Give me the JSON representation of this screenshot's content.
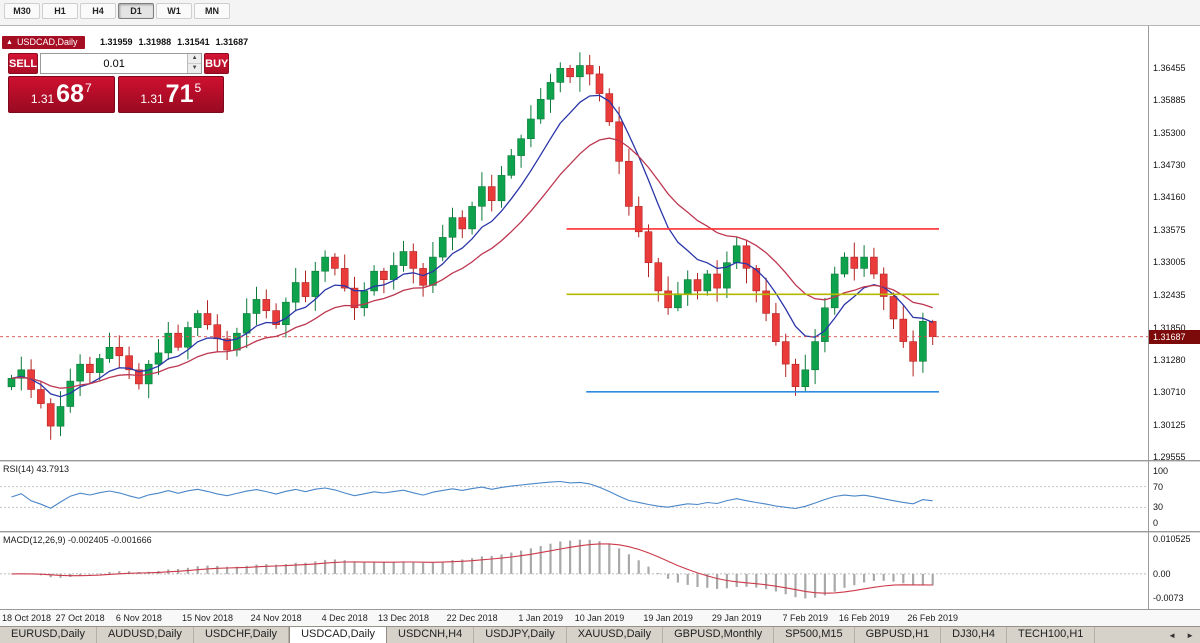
{
  "toolbar": {
    "timeframes": [
      {
        "label": "M30",
        "active": false
      },
      {
        "label": "H1",
        "active": false
      },
      {
        "label": "H4",
        "active": false
      },
      {
        "label": "D1",
        "active": true
      },
      {
        "label": "W1",
        "active": false
      },
      {
        "label": "MN",
        "active": false
      }
    ]
  },
  "window": {
    "symbol_title": "USDCAD,Daily",
    "collapse_icon": "▲",
    "ohlc_text": {
      "open": "1.31959",
      "high": "1.31988",
      "low": "1.31541",
      "close": "1.31687"
    }
  },
  "trade_panel": {
    "sell_label": "SELL",
    "buy_label": "BUY",
    "volume": "0.01",
    "spin_up": "▲",
    "spin_down": "▼",
    "sell_price": {
      "prefix": "1.31",
      "big": "68",
      "sup": "7"
    },
    "buy_price": {
      "prefix": "1.31",
      "big": "71",
      "sup": "5"
    }
  },
  "price_axis": {
    "labels": [
      "1.36455",
      "1.35885",
      "1.35300",
      "1.34730",
      "1.34160",
      "1.33575",
      "1.33005",
      "1.32435",
      "1.31850",
      "1.31280",
      "1.30710",
      "1.30125",
      "1.29555"
    ],
    "badge": "1.31687"
  },
  "rsi": {
    "label": "RSI(14) 43.7913",
    "axis_labels": [
      "100",
      "70",
      "30",
      "0"
    ],
    "levels": [
      70,
      30
    ]
  },
  "macd": {
    "label": "MACD(12,26,9) -0.002405 -0.001666",
    "axis_labels": [
      "0.010525",
      "0.00",
      "-0.0073"
    ]
  },
  "dates": [
    "18 Oct 2018",
    "27 Oct 2018",
    "6 Nov 2018",
    "15 Nov 2018",
    "24 Nov 2018",
    "4 Dec 2018",
    "13 Dec 2018",
    "22 Dec 2018",
    "1 Jan 2019",
    "10 Jan 2019",
    "19 Jan 2019",
    "29 Jan 2019",
    "7 Feb 2019",
    "16 Feb 2019",
    "26 Feb 2019"
  ],
  "tabs": {
    "items": [
      {
        "label": "EURUSD,Daily",
        "active": false
      },
      {
        "label": "AUDUSD,Daily",
        "active": false
      },
      {
        "label": "USDCHF,Daily",
        "active": false
      },
      {
        "label": "USDCAD,Daily",
        "active": true
      },
      {
        "label": "USDCNH,H4",
        "active": false
      },
      {
        "label": "USDJPY,Daily",
        "active": false
      },
      {
        "label": "XAUUSD,Daily",
        "active": false
      },
      {
        "label": "GBPUSD,Monthly",
        "active": false
      },
      {
        "label": "SP500,M15",
        "active": false
      },
      {
        "label": "GBPUSD,H1",
        "active": false
      },
      {
        "label": "DJ30,H4",
        "active": false
      },
      {
        "label": "TECH100,H1",
        "active": false
      }
    ],
    "scroll_left": "◄",
    "scroll_right": "►"
  },
  "chart_data": {
    "type": "candlestick",
    "symbol": "USDCAD",
    "timeframe": "Daily",
    "title": "USDCAD,Daily",
    "price_min": 1.295,
    "price_max": 1.372,
    "first_open": 1.308,
    "closes": [
      1.3095,
      1.311,
      1.3075,
      1.305,
      1.301,
      1.3045,
      1.309,
      1.312,
      1.3105,
      1.313,
      1.315,
      1.3135,
      1.311,
      1.3085,
      1.312,
      1.314,
      1.3175,
      1.315,
      1.3185,
      1.321,
      1.319,
      1.3165,
      1.3145,
      1.3175,
      1.321,
      1.3235,
      1.3215,
      1.319,
      1.323,
      1.3265,
      1.324,
      1.3285,
      1.331,
      1.329,
      1.3255,
      1.322,
      1.325,
      1.3285,
      1.327,
      1.3295,
      1.332,
      1.329,
      1.326,
      1.331,
      1.3345,
      1.338,
      1.336,
      1.34,
      1.3435,
      1.341,
      1.3455,
      1.349,
      1.352,
      1.3555,
      1.359,
      1.362,
      1.3645,
      1.363,
      1.365,
      1.3635,
      1.36,
      1.355,
      1.348,
      1.34,
      1.3355,
      1.33,
      1.325,
      1.322,
      1.3245,
      1.327,
      1.325,
      1.328,
      1.3255,
      1.33,
      1.333,
      1.329,
      1.325,
      1.321,
      1.316,
      1.312,
      1.308,
      1.311,
      1.316,
      1.322,
      1.328,
      1.331,
      1.329,
      1.331,
      1.328,
      1.324,
      1.32,
      1.316,
      1.3125,
      1.3196,
      1.31687
    ],
    "last_candle": {
      "o": 1.31959,
      "h": 1.31988,
      "l": 1.31541,
      "c": 1.31687
    },
    "bid": 1.31687,
    "ask": 1.31715,
    "ma_fast_period": 8,
    "ma_slow_period": 18,
    "hlines": [
      {
        "name": "resistance-line",
        "price": 1.336,
        "color": "#ff2f2f",
        "from_bar": 57,
        "to_bar": 95
      },
      {
        "name": "pivot-line",
        "price": 1.3244,
        "color": "#b4b800",
        "from_bar": 57,
        "to_bar": 95
      },
      {
        "name": "support-line",
        "price": 1.3071,
        "color": "#2e8be0",
        "from_bar": 59,
        "to_bar": 95
      }
    ],
    "rsi_period": 14,
    "rsi_current": 43.7913,
    "macd": {
      "fast": 12,
      "slow": 26,
      "signal": 9,
      "current": -0.002405,
      "current_signal": -0.001666
    },
    "date_tick_bars": [
      0,
      7,
      13,
      20,
      27,
      34,
      40,
      47,
      54,
      60,
      67,
      74,
      81,
      87,
      94
    ]
  },
  "colors": {
    "up": "#0fa24d",
    "up_border": "#0a7a39",
    "down": "#ea3b3b",
    "down_border": "#b32222",
    "ma_fast": "#2a35a8",
    "ma_slow": "#bd3750",
    "rsi": "#4a86c8",
    "macd_hist": "#a9a9a9",
    "macd_signal": "#cc3a4a",
    "bid_line": "#d94b4b"
  }
}
